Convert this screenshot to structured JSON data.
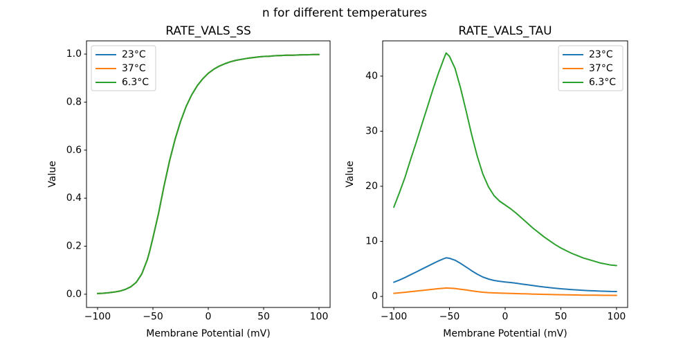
{
  "figure": {
    "suptitle": "n for different temperatures",
    "background": "#ffffff",
    "text_color": "#000000",
    "spine_color": "#000000"
  },
  "chart_data": [
    {
      "type": "line",
      "title": "RATE_VALS_SS",
      "xlabel": "Membrane Potential (mV)",
      "ylabel": "Value",
      "xlim": [
        -110,
        110
      ],
      "ylim": [
        -0.055,
        1.055
      ],
      "xticks": [
        -100,
        -50,
        0,
        50,
        100
      ],
      "xtick_labels": [
        "−100",
        "−50",
        "0",
        "50",
        "100"
      ],
      "yticks": [
        0.0,
        0.2,
        0.4,
        0.6,
        0.8,
        1.0
      ],
      "ytick_labels": [
        "0.0",
        "0.2",
        "0.4",
        "0.6",
        "0.8",
        "1.0"
      ],
      "grid": false,
      "legend_position": "upper left",
      "x": [
        -100,
        -95,
        -90,
        -85,
        -80,
        -75,
        -70,
        -65,
        -60,
        -55,
        -53,
        -50,
        -45,
        -40,
        -35,
        -30,
        -25,
        -20,
        -15,
        -10,
        -5,
        0,
        5,
        10,
        15,
        20,
        25,
        30,
        35,
        40,
        45,
        50,
        55,
        60,
        65,
        70,
        75,
        80,
        85,
        90,
        95,
        100
      ],
      "series": [
        {
          "name": "23°C",
          "color": "#1f77b4",
          "values": [
            0.003,
            0.004,
            0.006,
            0.009,
            0.013,
            0.02,
            0.031,
            0.05,
            0.085,
            0.145,
            0.178,
            0.235,
            0.335,
            0.45,
            0.555,
            0.645,
            0.72,
            0.782,
            0.83,
            0.868,
            0.897,
            0.92,
            0.937,
            0.95,
            0.96,
            0.968,
            0.974,
            0.978,
            0.982,
            0.985,
            0.988,
            0.99,
            0.991,
            0.993,
            0.994,
            0.995,
            0.995,
            0.996,
            0.997,
            0.997,
            0.998,
            0.998
          ]
        },
        {
          "name": "37°C",
          "color": "#ff7f0e",
          "values": [
            0.003,
            0.004,
            0.006,
            0.009,
            0.013,
            0.02,
            0.031,
            0.05,
            0.085,
            0.145,
            0.178,
            0.235,
            0.335,
            0.45,
            0.555,
            0.645,
            0.72,
            0.782,
            0.83,
            0.868,
            0.897,
            0.92,
            0.937,
            0.95,
            0.96,
            0.968,
            0.974,
            0.978,
            0.982,
            0.985,
            0.988,
            0.99,
            0.991,
            0.993,
            0.994,
            0.995,
            0.995,
            0.996,
            0.997,
            0.997,
            0.998,
            0.998
          ]
        },
        {
          "name": "6.3°C",
          "color": "#2ca02c",
          "values": [
            0.003,
            0.004,
            0.006,
            0.009,
            0.013,
            0.02,
            0.031,
            0.05,
            0.085,
            0.145,
            0.178,
            0.235,
            0.335,
            0.45,
            0.555,
            0.645,
            0.72,
            0.782,
            0.83,
            0.868,
            0.897,
            0.92,
            0.937,
            0.95,
            0.96,
            0.968,
            0.974,
            0.978,
            0.982,
            0.985,
            0.988,
            0.99,
            0.991,
            0.993,
            0.994,
            0.995,
            0.995,
            0.996,
            0.997,
            0.997,
            0.998,
            0.998
          ]
        }
      ]
    },
    {
      "type": "line",
      "title": "RATE_VALS_TAU",
      "xlabel": "Membrane Potential (mV)",
      "ylabel": "Value",
      "xlim": [
        -110,
        110
      ],
      "ylim": [
        -2.0,
        46.4
      ],
      "xticks": [
        -100,
        -50,
        0,
        50,
        100
      ],
      "xtick_labels": [
        "−100",
        "−50",
        "0",
        "50",
        "100"
      ],
      "yticks": [
        0,
        10,
        20,
        30,
        40
      ],
      "ytick_labels": [
        "0",
        "10",
        "20",
        "30",
        "40"
      ],
      "grid": false,
      "legend_position": "upper right",
      "x": [
        -100,
        -95,
        -90,
        -85,
        -80,
        -75,
        -70,
        -65,
        -60,
        -55,
        -53,
        -50,
        -45,
        -40,
        -35,
        -30,
        -25,
        -20,
        -15,
        -10,
        -5,
        0,
        5,
        10,
        15,
        20,
        25,
        30,
        35,
        40,
        45,
        50,
        55,
        60,
        65,
        70,
        75,
        80,
        85,
        90,
        95,
        100
      ],
      "series": [
        {
          "name": "23°C",
          "color": "#1f77b4",
          "values": [
            2.57,
            2.98,
            3.43,
            3.94,
            4.43,
            4.94,
            5.44,
            5.95,
            6.43,
            6.86,
            7.02,
            6.92,
            6.57,
            6.0,
            5.33,
            4.65,
            4.03,
            3.52,
            3.16,
            2.9,
            2.75,
            2.63,
            2.52,
            2.4,
            2.25,
            2.11,
            1.97,
            1.84,
            1.71,
            1.6,
            1.49,
            1.4,
            1.32,
            1.24,
            1.17,
            1.11,
            1.06,
            1.02,
            0.97,
            0.94,
            0.9,
            0.89
          ]
        },
        {
          "name": "37°C",
          "color": "#ff7f0e",
          "values": [
            0.56,
            0.65,
            0.75,
            0.86,
            0.97,
            1.08,
            1.19,
            1.3,
            1.41,
            1.5,
            1.53,
            1.51,
            1.44,
            1.31,
            1.17,
            1.02,
            0.88,
            0.77,
            0.69,
            0.64,
            0.6,
            0.58,
            0.55,
            0.52,
            0.49,
            0.46,
            0.43,
            0.4,
            0.38,
            0.35,
            0.33,
            0.31,
            0.29,
            0.27,
            0.26,
            0.24,
            0.23,
            0.22,
            0.21,
            0.2,
            0.2,
            0.19
          ]
        },
        {
          "name": "6.3°C",
          "color": "#2ca02c",
          "values": [
            16.2,
            18.8,
            21.6,
            24.8,
            27.9,
            31.1,
            34.3,
            37.5,
            40.5,
            43.2,
            44.2,
            43.6,
            41.4,
            37.8,
            33.6,
            29.3,
            25.4,
            22.2,
            19.9,
            18.3,
            17.3,
            16.6,
            15.9,
            15.1,
            14.2,
            13.3,
            12.4,
            11.6,
            10.8,
            10.1,
            9.4,
            8.8,
            8.3,
            7.8,
            7.4,
            7.0,
            6.7,
            6.4,
            6.1,
            5.9,
            5.7,
            5.6
          ]
        }
      ]
    }
  ]
}
